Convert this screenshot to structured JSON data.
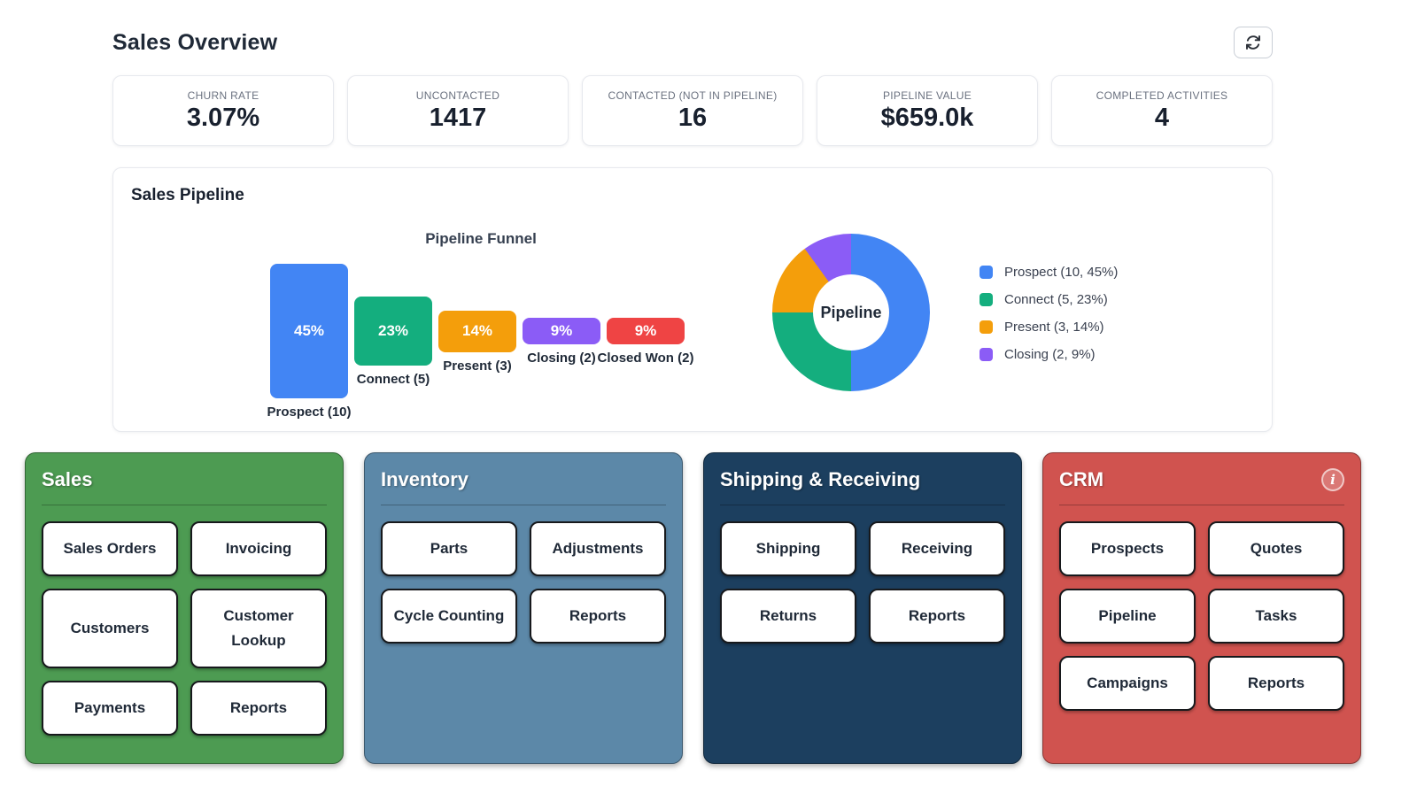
{
  "header": {
    "title": "Sales Overview"
  },
  "stats": [
    {
      "label": "CHURN RATE",
      "value": "3.07%"
    },
    {
      "label": "UNCONTACTED",
      "value": "1417"
    },
    {
      "label": "CONTACTED (NOT IN PIPELINE)",
      "value": "16"
    },
    {
      "label": "PIPELINE VALUE",
      "value": "$659.0k"
    },
    {
      "label": "COMPLETED ACTIVITIES",
      "value": "4"
    }
  ],
  "pipeline_panel": {
    "title": "Sales Pipeline",
    "chart_data": [
      {
        "type": "bar",
        "variant": "centered-funnel",
        "title": "Pipeline Funnel",
        "categories": [
          "Prospect (10)",
          "Connect (5)",
          "Present (3)",
          "Closing (2)",
          "Closed Won (2)"
        ],
        "counts": [
          10,
          5,
          3,
          2,
          2
        ],
        "values": [
          45,
          23,
          14,
          9,
          9
        ],
        "value_labels": [
          "45%",
          "23%",
          "14%",
          "9%",
          "9%"
        ],
        "colors": [
          "#4285F4",
          "#14AE7E",
          "#F49E0B",
          "#8B5CF6",
          "#EF4444"
        ],
        "ylabel": "",
        "xlabel": "",
        "grid": false
      },
      {
        "type": "pie",
        "variant": "donut",
        "center_label": "Pipeline",
        "legend_position": "right",
        "segments": [
          {
            "label": "Prospect (10, 45%)",
            "count": 10,
            "pct": 45,
            "deg": 180,
            "color": "#4285F4"
          },
          {
            "label": "Connect (5, 23%)",
            "count": 5,
            "pct": 23,
            "deg": 90,
            "color": "#14AE7E"
          },
          {
            "label": "Present (3, 14%)",
            "count": 3,
            "pct": 14,
            "deg": 54,
            "color": "#F49E0B"
          },
          {
            "label": "Closing (2, 9%)",
            "count": 2,
            "pct": 9,
            "deg": 36,
            "color": "#8B5CF6"
          }
        ]
      }
    ]
  },
  "modules": [
    {
      "title": "Sales",
      "color": "#4D9B52",
      "info_icon": false,
      "buttons": [
        "Sales Orders",
        "Invoicing",
        "Customers",
        "Customer Lookup",
        "Payments",
        "Reports"
      ]
    },
    {
      "title": "Inventory",
      "color": "#5C88A8",
      "info_icon": false,
      "buttons": [
        "Parts",
        "Adjustments",
        "Cycle Counting",
        "Reports"
      ]
    },
    {
      "title": "Shipping & Receiving",
      "color": "#1C3F5F",
      "info_icon": false,
      "buttons": [
        "Shipping",
        "Receiving",
        "Returns",
        "Reports"
      ]
    },
    {
      "title": "CRM",
      "color": "#D0534F",
      "info_icon": true,
      "buttons": [
        "Prospects",
        "Quotes",
        "Pipeline",
        "Tasks",
        "Campaigns",
        "Reports"
      ]
    }
  ]
}
